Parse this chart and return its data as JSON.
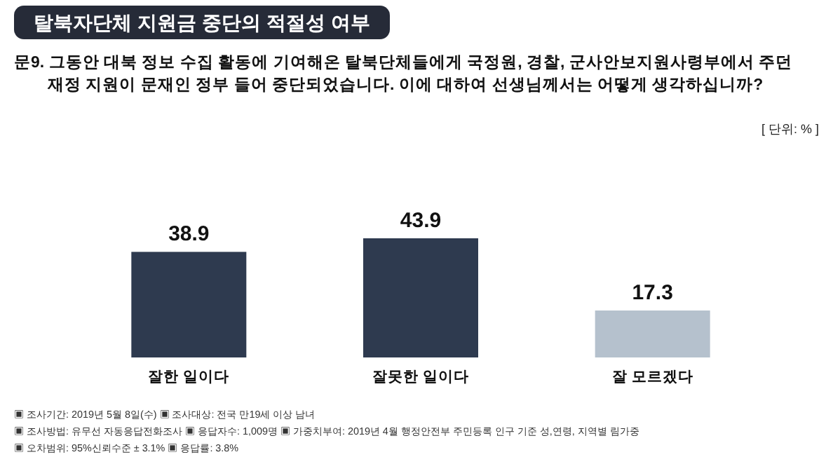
{
  "chart_data": {
    "type": "bar",
    "title": "탈북자단체 지원금 중단의 적절성 여부",
    "subtitle": "문9. 그동안 대북 정보 수집 활동에 기여해온 탈북단체들에게 국정원, 경찰, 군사안보지원사령부에서 주던\n재정 지원이 문재인 정부 들어 중단되었습니다. 이에 대하여 선생님께서는 어떻게 생각하십니까?",
    "categories": [
      "잘한 일이다",
      "잘못한 일이다",
      "잘 모르겠다"
    ],
    "values": [
      38.9,
      43.9,
      17.3
    ],
    "colors": [
      "#2e3a4f",
      "#2e3a4f",
      "#b5c1cd"
    ],
    "data_labels": true,
    "annotations": [
      "[ 단위: % ]",
      "▣ 조사기간: 2019년 5월 8일(수) ▣ 조사대상: 전국 만19세 이상 남녀",
      "▣ 조사방법: 유무선 자동응답전화조사 ▣ 응답자수: 1,009명 ▣ 가중치부여: 2019년 4월 행정안전부 주민등록 인구 기준 성,연령, 지역별 림가중",
      "▣ 오차범위: 95%신뢰수준 ± 3.1% ▣ 응답률: 3.8%"
    ]
  }
}
